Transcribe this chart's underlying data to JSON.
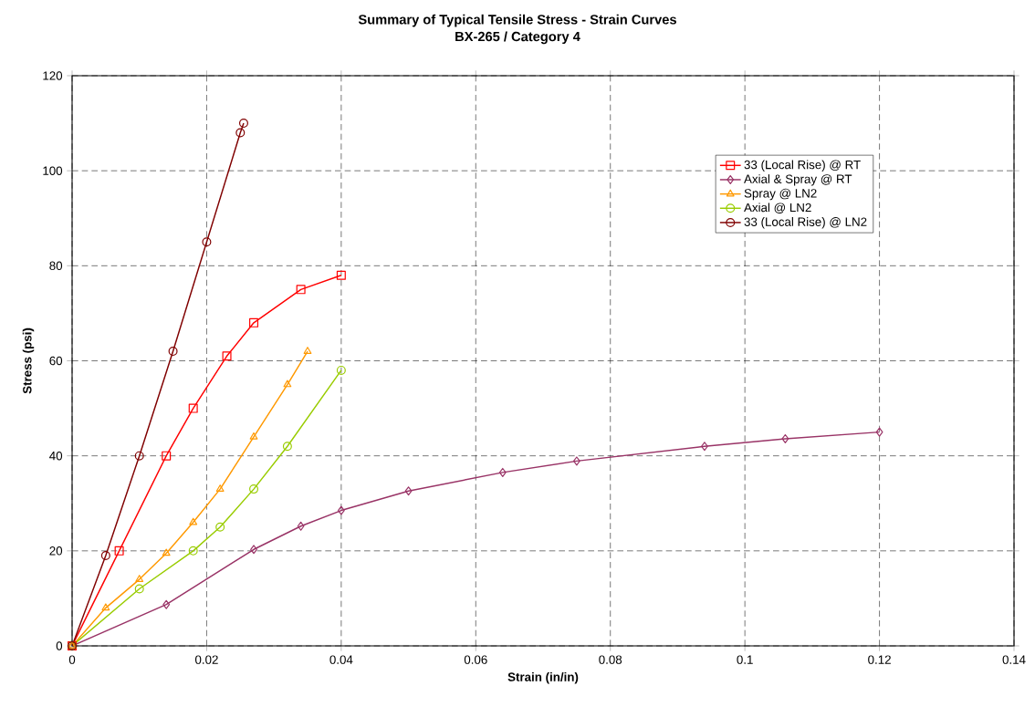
{
  "chart_data": {
    "type": "line",
    "title": "Summary of Typical Tensile Stress - Strain Curves",
    "subtitle": "BX-265 / Category 4",
    "xlabel": "Strain (in/in)",
    "ylabel": "Stress (psi)",
    "xlim": [
      0,
      0.14
    ],
    "ylim": [
      0,
      120
    ],
    "xticks": [
      0,
      0.02,
      0.04,
      0.06,
      0.08,
      0.1,
      0.12,
      0.14
    ],
    "yticks": [
      0,
      20,
      40,
      60,
      80,
      100,
      120
    ],
    "grid": true,
    "legend": "top right",
    "line_style": "solid",
    "series": [
      {
        "name": "33 (Local Rise) @ RT",
        "color": "#ff0000",
        "marker": "square",
        "x": [
          0,
          0.007,
          0.014,
          0.018,
          0.023,
          0.027,
          0.034,
          0.04
        ],
        "values": [
          0,
          20,
          40,
          50,
          61,
          68,
          75,
          78
        ]
      },
      {
        "name": "Axial & Spray @ RT",
        "color": "#993366",
        "marker": "diamond",
        "x": [
          0,
          0.014,
          0.027,
          0.034,
          0.04,
          0.05,
          0.064,
          0.075,
          0.094,
          0.106,
          0.12
        ],
        "values": [
          0,
          8.7,
          20.3,
          25.2,
          28.5,
          32.6,
          36.5,
          38.9,
          42,
          43.6,
          45
        ]
      },
      {
        "name": "Spray @ LN2",
        "color": "#ff9900",
        "marker": "triangle",
        "x": [
          0,
          0.005,
          0.01,
          0.014,
          0.018,
          0.022,
          0.027,
          0.032,
          0.035
        ],
        "values": [
          0,
          8,
          14,
          19.5,
          26,
          33,
          44,
          55,
          62
        ]
      },
      {
        "name": "Axial @ LN2",
        "color": "#99cc00",
        "marker": "circle",
        "x": [
          0,
          0.01,
          0.018,
          0.022,
          0.027,
          0.032,
          0.04
        ],
        "values": [
          0,
          12,
          20,
          25,
          33,
          42,
          58
        ]
      },
      {
        "name": "33 (Local Rise) @ LN2",
        "color": "#800000",
        "marker": "circle",
        "x": [
          0,
          0.005,
          0.01,
          0.015,
          0.02,
          0.025,
          0.0255
        ],
        "values": [
          0,
          19,
          40,
          62,
          85,
          108,
          110
        ]
      }
    ]
  }
}
